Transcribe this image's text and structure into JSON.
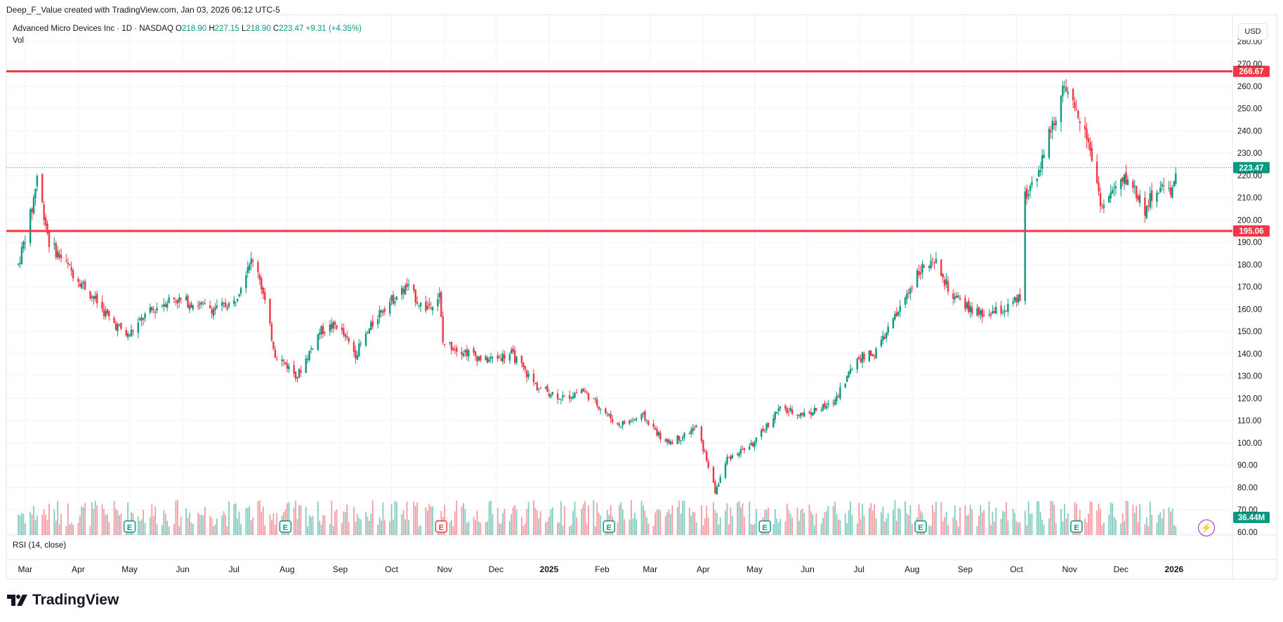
{
  "header": {
    "caption": "Deep_F_Value created with TradingView.com, Jan 03, 2026 06:12 UTC-5"
  },
  "legend": {
    "symbol": "Advanced Micro Devices Inc · 1D · NASDAQ",
    "open_key": "O",
    "open": "218.90",
    "high_key": "H",
    "high": "227.15",
    "low_key": "L",
    "low": "218.90",
    "close_key": "C",
    "close": "223.47",
    "change": "+9.31 (+4.35%)"
  },
  "volume_label": "Vol",
  "rsi_label": "RSI (14, close)",
  "currency": "USD",
  "branding": {
    "logo_text": "TradingView"
  },
  "colors": {
    "up": "#089981",
    "down": "#f23645",
    "level": "#f23645",
    "last_price": "#089981"
  },
  "chart_data": {
    "type": "candlestick",
    "ylim": [
      55,
      282
    ],
    "y_ticks": [
      "60.00",
      "70.00",
      "80.00",
      "90.00",
      "100.00",
      "110.00",
      "120.00",
      "130.00",
      "140.00",
      "150.00",
      "160.00",
      "170.00",
      "180.00",
      "190.00",
      "200.00",
      "210.00",
      "220.00",
      "230.00",
      "240.00",
      "250.00",
      "260.00",
      "270.00",
      "280.00"
    ],
    "x_ticks": [
      "Mar",
      "Apr",
      "May",
      "Jun",
      "Jul",
      "Aug",
      "Sep",
      "Oct",
      "Nov",
      "Dec",
      "2025",
      "Feb",
      "Mar",
      "Apr",
      "May",
      "Jun",
      "Jul",
      "Aug",
      "Sep",
      "Oct",
      "Nov",
      "Dec",
      "2026"
    ],
    "horizontal_levels": [
      {
        "value": 266.67,
        "label": "266.67"
      },
      {
        "value": 195.06,
        "label": "195.06"
      }
    ],
    "last_price": {
      "value": 223.47,
      "label": "223.47"
    },
    "last_volume_label": "36.44M",
    "earnings_markers": [
      {
        "date": "2024-05",
        "label": "E"
      },
      {
        "date": "2024-08",
        "label": "E"
      },
      {
        "date": "2024-10",
        "label": "E"
      },
      {
        "date": "2025-02",
        "label": "E"
      },
      {
        "date": "2025-05",
        "label": "E"
      },
      {
        "date": "2025-08",
        "label": "E"
      },
      {
        "date": "2025-11",
        "label": "E"
      }
    ],
    "price_path": [
      [
        "2024-02-26",
        180
      ],
      [
        "2024-03-05",
        205
      ],
      [
        "2024-03-08",
        220
      ],
      [
        "2024-03-15",
        190
      ],
      [
        "2024-03-25",
        180
      ],
      [
        "2024-04-05",
        170
      ],
      [
        "2024-04-20",
        155
      ],
      [
        "2024-04-30",
        148
      ],
      [
        "2024-05-10",
        157
      ],
      [
        "2024-05-25",
        165
      ],
      [
        "2024-06-05",
        163
      ],
      [
        "2024-06-20",
        160
      ],
      [
        "2024-07-01",
        163
      ],
      [
        "2024-07-10",
        182
      ],
      [
        "2024-07-15",
        178
      ],
      [
        "2024-07-25",
        140
      ],
      [
        "2024-08-07",
        130
      ],
      [
        "2024-08-20",
        150
      ],
      [
        "2024-08-30",
        153
      ],
      [
        "2024-09-10",
        140
      ],
      [
        "2024-09-25",
        160
      ],
      [
        "2024-10-10",
        170
      ],
      [
        "2024-10-20",
        160
      ],
      [
        "2024-10-29",
        166
      ],
      [
        "2024-10-31",
        145
      ],
      [
        "2024-11-10",
        142
      ],
      [
        "2024-11-25",
        137
      ],
      [
        "2024-12-10",
        140
      ],
      [
        "2024-12-25",
        125
      ],
      [
        "2025-01-10",
        120
      ],
      [
        "2025-01-20",
        124
      ],
      [
        "2025-01-31",
        116
      ],
      [
        "2025-02-10",
        108
      ],
      [
        "2025-02-25",
        112
      ],
      [
        "2025-03-10",
        100
      ],
      [
        "2025-03-20",
        103
      ],
      [
        "2025-03-28",
        107
      ],
      [
        "2025-04-04",
        90
      ],
      [
        "2025-04-08",
        78
      ],
      [
        "2025-04-15",
        93
      ],
      [
        "2025-05-01",
        100
      ],
      [
        "2025-05-15",
        115
      ],
      [
        "2025-05-30",
        113
      ],
      [
        "2025-06-15",
        117
      ],
      [
        "2025-06-30",
        138
      ],
      [
        "2025-07-10",
        140
      ],
      [
        "2025-07-25",
        160
      ],
      [
        "2025-08-05",
        178
      ],
      [
        "2025-08-15",
        180
      ],
      [
        "2025-08-25",
        165
      ],
      [
        "2025-09-10",
        157
      ],
      [
        "2025-09-25",
        160
      ],
      [
        "2025-10-03",
        165
      ],
      [
        "2025-10-06",
        210
      ],
      [
        "2025-10-15",
        225
      ],
      [
        "2025-10-28",
        258
      ],
      [
        "2025-11-03",
        250
      ],
      [
        "2025-11-10",
        243
      ],
      [
        "2025-11-20",
        205
      ],
      [
        "2025-11-25",
        212
      ],
      [
        "2025-12-05",
        219
      ],
      [
        "2025-12-15",
        205
      ],
      [
        "2025-12-22",
        214
      ],
      [
        "2025-12-31",
        214
      ],
      [
        "2026-01-02",
        223.47
      ]
    ]
  }
}
